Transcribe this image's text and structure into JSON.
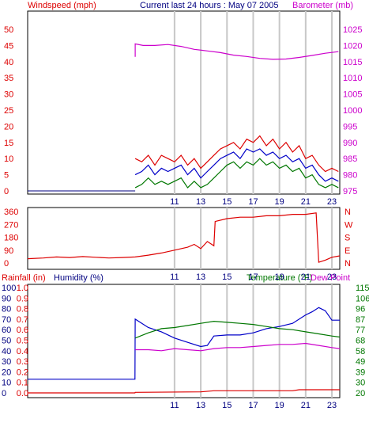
{
  "title": "Current last 24 hours : May 07 2005",
  "colors": {
    "red": "#dd0000",
    "blue": "#0000c8",
    "green": "#007700",
    "magenta": "#cc00cc",
    "darkblue": "#000080",
    "grid": "#c8c8c8",
    "border": "#000000"
  },
  "x_ticks": [
    "11",
    "13",
    "15",
    "17",
    "19",
    "21",
    "23"
  ],
  "chart_data": [
    {
      "id": "wind-baro",
      "type": "line",
      "left_label": "Windspeed (mph)",
      "right_label": "Barometer (mb)",
      "left_ticks": [
        "0",
        "5",
        "10",
        "15",
        "20",
        "25",
        "30",
        "35",
        "40",
        "45",
        "50"
      ],
      "right_ticks": [
        "975",
        "980",
        "985",
        "990",
        "995",
        "1000",
        "1005",
        "1010",
        "1015",
        "1020",
        "1025"
      ],
      "left_range": [
        0,
        50
      ],
      "right_range": [
        975,
        1025
      ],
      "series": [
        {
          "axis": "right",
          "color": "magenta",
          "x": [
            8.0,
            8.0,
            8.6,
            9.5,
            10.5,
            11.5,
            12.5,
            13.5,
            14.5,
            15.5,
            16.5,
            17.5,
            18.5,
            19.5,
            20.5,
            21.5,
            22.5,
            23.5
          ],
          "y": [
            1016.5,
            1020.5,
            1020.0,
            1020.0,
            1020.3,
            1019.7,
            1018.8,
            1018.3,
            1017.8,
            1017.0,
            1016.6,
            1016.0,
            1015.7,
            1015.8,
            1016.3,
            1016.9,
            1017.6,
            1018.1
          ]
        },
        {
          "axis": "left",
          "color": "red",
          "x": [
            8.0,
            8.5,
            9.0,
            9.5,
            10.0,
            10.5,
            11.0,
            11.5,
            12.0,
            12.5,
            13.0,
            13.5,
            14.0,
            14.5,
            15.0,
            15.5,
            16.0,
            16.5,
            17.0,
            17.5,
            18.0,
            18.5,
            19.0,
            19.5,
            20.0,
            20.5,
            21.0,
            21.5,
            22.0,
            22.5,
            23.0,
            23.5
          ],
          "y": [
            10,
            9,
            11,
            8,
            11,
            10,
            9,
            11,
            8,
            10,
            7,
            9,
            11,
            13,
            14,
            15,
            13,
            16,
            15,
            17,
            14,
            16,
            13,
            15,
            12,
            14,
            10,
            11,
            8,
            6,
            7,
            6
          ]
        },
        {
          "axis": "left",
          "color": "blue",
          "x": [
            8.0,
            8.5,
            9.0,
            9.5,
            10.0,
            10.5,
            11.0,
            11.5,
            12.0,
            12.5,
            13.0,
            13.5,
            14.0,
            14.5,
            15.0,
            15.5,
            16.0,
            16.5,
            17.0,
            17.5,
            18.0,
            18.5,
            19.0,
            19.5,
            20.0,
            20.5,
            21.0,
            21.5,
            22.0,
            22.5,
            23.0,
            23.5
          ],
          "y": [
            5,
            6,
            8,
            5,
            7,
            6,
            7,
            8,
            5,
            7,
            4,
            6,
            8,
            10,
            11,
            12,
            10,
            13,
            12,
            13,
            11,
            12,
            10,
            11,
            9,
            10,
            7,
            8,
            5,
            3,
            4,
            3
          ]
        },
        {
          "axis": "left",
          "color": "green",
          "x": [
            8.0,
            8.5,
            9.0,
            9.5,
            10.0,
            10.5,
            11.0,
            11.5,
            12.0,
            12.5,
            13.0,
            13.5,
            14.0,
            14.5,
            15.0,
            15.5,
            16.0,
            16.5,
            17.0,
            17.5,
            18.0,
            18.5,
            19.0,
            19.5,
            20.0,
            20.5,
            21.0,
            21.5,
            22.0,
            22.5,
            23.0,
            23.5
          ],
          "y": [
            1,
            2,
            4,
            2,
            3,
            2,
            3,
            4,
            1,
            3,
            1,
            2,
            4,
            6,
            8,
            9,
            7,
            9,
            8,
            10,
            8,
            9,
            7,
            8,
            6,
            7,
            4,
            5,
            2,
            1,
            2,
            1
          ]
        }
      ]
    },
    {
      "id": "wind-dir",
      "type": "line",
      "left_ticks": [
        "0",
        "90",
        "180",
        "270",
        "360"
      ],
      "right_ticks": [
        "N",
        "E",
        "S",
        "W",
        "N"
      ],
      "left_range": [
        0,
        360
      ],
      "series": [
        {
          "axis": "left",
          "color": "red",
          "x": [
            -0.2,
            1,
            2,
            3,
            4,
            5,
            6,
            7,
            8,
            9,
            10,
            11,
            12,
            12.5,
            13,
            13.5,
            14,
            14.1,
            15,
            16,
            17,
            18,
            19,
            20,
            21,
            21.8,
            22.0,
            22.5,
            23,
            23.6
          ],
          "y": [
            30,
            35,
            42,
            38,
            45,
            40,
            35,
            38,
            42,
            55,
            70,
            90,
            110,
            130,
            100,
            150,
            120,
            290,
            310,
            320,
            320,
            330,
            330,
            340,
            340,
            350,
            5,
            20,
            40,
            50
          ]
        }
      ]
    },
    {
      "id": "rain-hum-temp",
      "type": "line",
      "rain_label": "Rainfall (in)",
      "humidity_label": "Humidity (%)",
      "temp_label": "Temperature (°F)",
      "dew_label": "Dew Point",
      "humidity_ticks": [
        "0",
        "10",
        "20",
        "30",
        "40",
        "50",
        "60",
        "70",
        "80",
        "90",
        "100"
      ],
      "rain_ticks": [
        "0.0",
        "0.1",
        "0.2",
        "0.3",
        "0.4",
        "0.5",
        "0.6",
        "0.7",
        "0.8",
        "0.9",
        "1.0"
      ],
      "temp_ticks": [
        "20",
        "30",
        "39",
        "49",
        "58",
        "68",
        "77",
        "87",
        "96",
        "106",
        "115"
      ],
      "temp_range": [
        20,
        115
      ],
      "series": [
        {
          "axis": "humidity",
          "color": "blue",
          "x": [
            -0.2,
            7.98,
            8.0,
            9,
            10,
            11,
            12,
            13,
            13.5,
            14,
            15,
            16,
            17,
            18,
            19,
            20,
            21,
            21.5,
            22,
            22.5,
            23,
            23.6
          ],
          "y": [
            13,
            13,
            70,
            62,
            58,
            52,
            48,
            44,
            45,
            54,
            55,
            55,
            57,
            61,
            63,
            66,
            74,
            77,
            81,
            78,
            69,
            69
          ]
        },
        {
          "axis": "humidity",
          "color": "green",
          "x": [
            8.0,
            9,
            10,
            11,
            12,
            13,
            14,
            15,
            16,
            17,
            18,
            19,
            20,
            21,
            22,
            23,
            23.6
          ],
          "y": [
            52,
            57,
            61,
            62,
            64,
            66,
            68,
            67,
            66,
            65,
            63,
            61,
            60,
            58,
            56,
            54,
            53
          ]
        },
        {
          "axis": "humidity",
          "color": "magenta",
          "x": [
            8.0,
            9,
            10,
            11,
            12,
            13,
            14,
            15,
            16,
            17,
            18,
            19,
            20,
            21,
            22,
            23,
            23.6
          ],
          "y": [
            41,
            41,
            40,
            42,
            41,
            40,
            42,
            43,
            43,
            44,
            45,
            46,
            46,
            47,
            45,
            43,
            42
          ]
        },
        {
          "axis": "humidity",
          "color": "red",
          "x": [
            -0.2,
            7.98,
            8.0,
            13,
            14,
            20,
            20.5,
            21,
            23.6
          ],
          "y": [
            0,
            0,
            0.5,
            1,
            2,
            2,
            3,
            3,
            3
          ]
        }
      ]
    }
  ]
}
